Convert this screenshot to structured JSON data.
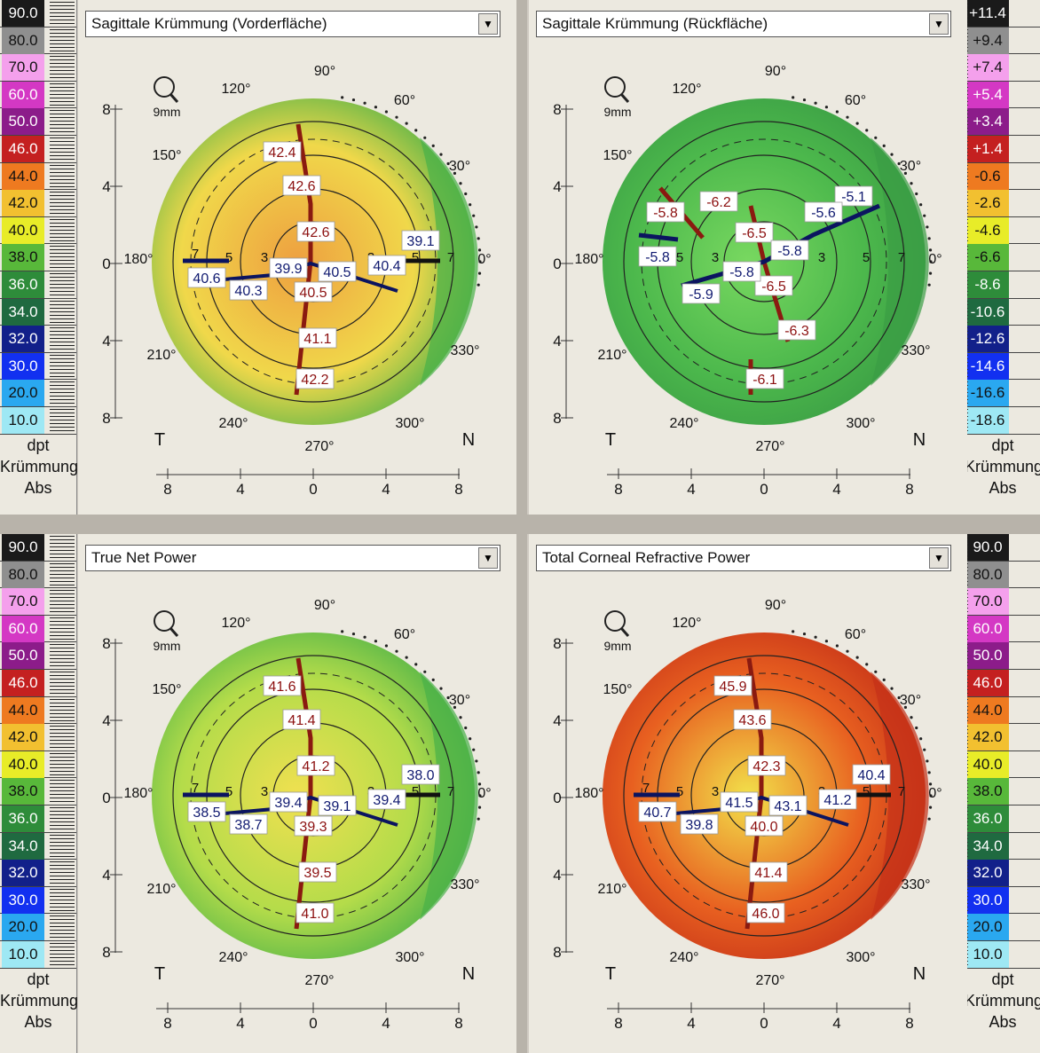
{
  "colors": {
    "abs_scale": [
      "#1a1a1a",
      "#8f8f8f",
      "#f4a0ec",
      "#d438c4",
      "#8c1c8a",
      "#c42020",
      "#ee7a20",
      "#f2c030",
      "#e8ec28",
      "#58b83a",
      "#2e8c3a",
      "#1f6a40",
      "#12208a",
      "#1230f0",
      "#2aa8f0",
      "#9ee8f4"
    ],
    "rel_scale": [
      "#1a1a1a",
      "#8f8f8f",
      "#f4a0ec",
      "#d438c4",
      "#8c1c8a",
      "#c42020",
      "#ee7a20",
      "#f2c030",
      "#e8ec28",
      "#58b83a",
      "#2e8c3a",
      "#1f6a40",
      "#12208a",
      "#1230f0",
      "#2aa8f0",
      "#9ee8f4"
    ]
  },
  "scales": {
    "left_top": {
      "values": [
        "90.0",
        "80.0",
        "70.0",
        "60.0",
        "50.0",
        "46.0",
        "44.0",
        "42.0",
        "40.0",
        "38.0",
        "36.0",
        "34.0",
        "32.0",
        "30.0",
        "20.0",
        "10.0"
      ],
      "unit": "dpt",
      "type": "Krümmung",
      "mode": "Abs"
    },
    "right_top": {
      "values": [
        "+11.4",
        "+9.4",
        "+7.4",
        "+5.4",
        "+3.4",
        "+1.4",
        "-0.6",
        "-2.6",
        "-4.6",
        "-6.6",
        "-8.6",
        "-10.6",
        "-12.6",
        "-14.6",
        "-16.6",
        "-18.6"
      ],
      "unit": "dpt",
      "type": "Krümmung",
      "mode": "Abs"
    },
    "left_bottom": {
      "values": [
        "90.0",
        "80.0",
        "70.0",
        "60.0",
        "50.0",
        "46.0",
        "44.0",
        "42.0",
        "40.0",
        "38.0",
        "36.0",
        "34.0",
        "32.0",
        "30.0",
        "20.0",
        "10.0"
      ],
      "unit": "dpt",
      "type": "Krümmung",
      "mode": "Abs"
    },
    "right_bottom": {
      "values": [
        "90.0",
        "80.0",
        "70.0",
        "60.0",
        "50.0",
        "46.0",
        "44.0",
        "42.0",
        "40.0",
        "38.0",
        "36.0",
        "34.0",
        "32.0",
        "30.0",
        "20.0",
        "10.0"
      ],
      "unit": "dpt",
      "type": "Krümmung",
      "mode": "Abs"
    }
  },
  "common": {
    "zoom_label": "9mm",
    "temporal": "T",
    "nasal": "N",
    "axis_ticks": [
      "8",
      "4",
      "0",
      "4",
      "8"
    ],
    "ring_labels": [
      "7",
      "5",
      "3",
      "3",
      "5",
      "7"
    ],
    "angles": [
      "90°",
      "60°",
      "30°",
      "0°",
      "330°",
      "300°",
      "270°",
      "240°",
      "210°",
      "180°",
      "150°",
      "120°"
    ]
  },
  "panels": [
    {
      "title": "Sagittale Krümmung (Vorderfläche)",
      "map_base": "#f0d84a",
      "map_edge": "#48b048",
      "map_accent": "#eea040",
      "values_red": [
        "42.4",
        "42.6",
        "42.6",
        "40.5",
        "41.1",
        "42.2"
      ],
      "values_blue": [
        "39.1",
        "40.6",
        "40.3",
        "39.9",
        "40.5",
        "40.4"
      ]
    },
    {
      "title": "Sagittale Krümmung (Rückfläche)",
      "map_base": "#4cb84c",
      "map_edge": "#3a9c44",
      "map_accent": "#78d860",
      "values_red": [
        "-5.8",
        "-6.2",
        "-6.5",
        "-6.5",
        "-6.3",
        "-6.1"
      ],
      "values_blue": [
        "-5.1",
        "-5.6",
        "-5.8",
        "-5.8",
        "-5.9",
        "-5.8"
      ]
    },
    {
      "title": "True Net Power",
      "map_base": "#b4dc4a",
      "map_edge": "#48b048",
      "map_accent": "#f0e050",
      "values_red": [
        "41.6",
        "41.4",
        "41.2",
        "39.3",
        "39.5",
        "41.0"
      ],
      "values_blue": [
        "38.0",
        "38.5",
        "38.7",
        "39.4",
        "39.1",
        "39.4"
      ]
    },
    {
      "title": "Total Corneal Refractive Power",
      "map_base": "#e86020",
      "map_edge": "#c43018",
      "map_accent": "#f2e04a",
      "values_red": [
        "45.9",
        "43.6",
        "42.3",
        "40.0",
        "41.4",
        "46.0"
      ],
      "values_blue": [
        "40.4",
        "40.7",
        "39.8",
        "41.5",
        "43.1",
        "41.2"
      ]
    }
  ]
}
